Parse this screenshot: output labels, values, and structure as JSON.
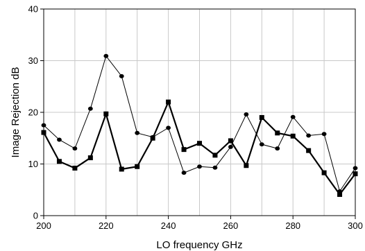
{
  "chart_data": {
    "type": "line",
    "title": "",
    "xlabel": "LO frequency  GHz",
    "ylabel": "Image Rejection   dB",
    "xlim": [
      200,
      300
    ],
    "ylim": [
      0,
      40
    ],
    "xticks": [
      200,
      220,
      240,
      260,
      280,
      300
    ],
    "yticks": [
      0,
      10,
      20,
      30,
      40
    ],
    "x_gridlines": [
      200,
      210,
      220,
      230,
      240,
      250,
      260,
      270,
      280,
      290,
      300
    ],
    "grid": true,
    "legend": false,
    "series": [
      {
        "marker": "circle",
        "line_weight": "thin",
        "color": "#000000",
        "points": [
          [
            200,
            17.5
          ],
          [
            205,
            14.7
          ],
          [
            210,
            13.0
          ],
          [
            215,
            20.7
          ],
          [
            220,
            30.9
          ],
          [
            225,
            27.0
          ],
          [
            230,
            16.0
          ],
          [
            235,
            15.2
          ],
          [
            240,
            17.0
          ],
          [
            245,
            8.3
          ],
          [
            250,
            9.5
          ],
          [
            255,
            9.3
          ],
          [
            260,
            13.3
          ],
          [
            265,
            19.6
          ],
          [
            270,
            13.8
          ],
          [
            275,
            13.0
          ],
          [
            280,
            19.1
          ],
          [
            285,
            15.5
          ],
          [
            290,
            15.8
          ],
          [
            295,
            4.7
          ],
          [
            300,
            9.2
          ]
        ]
      },
      {
        "marker": "square",
        "line_weight": "thick",
        "color": "#000000",
        "points": [
          [
            200,
            16.1
          ],
          [
            205,
            10.5
          ],
          [
            210,
            9.2
          ],
          [
            215,
            11.2
          ],
          [
            220,
            19.7
          ],
          [
            225,
            9.0
          ],
          [
            230,
            9.5
          ],
          [
            235,
            15.0
          ],
          [
            240,
            22.0
          ],
          [
            245,
            12.8
          ],
          [
            250,
            14.0
          ],
          [
            255,
            11.7
          ],
          [
            260,
            14.5
          ],
          [
            265,
            9.7
          ],
          [
            270,
            19.0
          ],
          [
            275,
            16.0
          ],
          [
            280,
            15.4
          ],
          [
            285,
            12.6
          ],
          [
            290,
            8.3
          ],
          [
            295,
            4.1
          ],
          [
            300,
            8.1
          ]
        ]
      }
    ]
  }
}
